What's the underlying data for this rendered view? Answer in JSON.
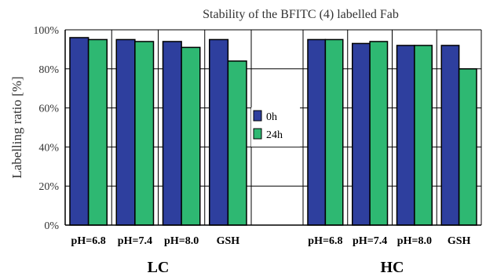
{
  "chart_data": {
    "type": "bar",
    "title": "Stability of the BFITC (4) labelled Fab",
    "ylabel": "Labelling ratio [%]",
    "xlabel": "",
    "ylim": [
      0,
      100
    ],
    "yticks": [
      0,
      20,
      40,
      60,
      80,
      100
    ],
    "ytick_labels": [
      "0%",
      "20%",
      "40%",
      "60%",
      "80%",
      "100%"
    ],
    "grid": true,
    "legend_position": "center",
    "groups": [
      {
        "name": "LC",
        "categories": [
          "pH=6.8",
          "pH=7.4",
          "pH=8.0",
          "GSH"
        ]
      },
      {
        "name": "HC",
        "categories": [
          "pH=6.8",
          "pH=7.4",
          "pH=8.0",
          "GSH"
        ]
      }
    ],
    "series": [
      {
        "name": "0h",
        "color": "#2E3F9E",
        "values": [
          96,
          95,
          94,
          95,
          95,
          93,
          92,
          92
        ]
      },
      {
        "name": "24h",
        "color": "#2EB872",
        "values": [
          95,
          94,
          91,
          84,
          95,
          94,
          92,
          80
        ]
      }
    ]
  }
}
